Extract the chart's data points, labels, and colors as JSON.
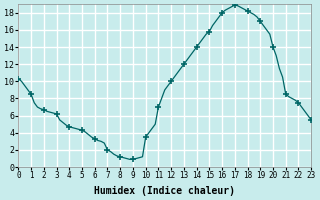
{
  "xlabel": "Humidex (Indice chaleur)",
  "ylabel": "",
  "xlim": [
    0,
    23
  ],
  "ylim": [
    0,
    19
  ],
  "yticks": [
    0,
    2,
    4,
    6,
    8,
    10,
    12,
    14,
    16,
    18
  ],
  "xticks": [
    0,
    1,
    2,
    3,
    4,
    5,
    6,
    7,
    8,
    9,
    10,
    11,
    12,
    13,
    14,
    15,
    16,
    17,
    18,
    19,
    20,
    21,
    22,
    23
  ],
  "background_color": "#c8ecec",
  "grid_color": "#ffffff",
  "line_color": "#006666",
  "marker_color": "#006666",
  "x": [
    0,
    0.25,
    0.5,
    0.75,
    1.0,
    1.25,
    1.5,
    1.75,
    2.0,
    2.25,
    2.5,
    2.75,
    3.0,
    3.25,
    3.5,
    3.75,
    4.0,
    4.25,
    4.5,
    4.75,
    5.0,
    5.25,
    5.5,
    5.75,
    6.0,
    6.25,
    6.5,
    6.75,
    7.0,
    7.25,
    7.5,
    7.75,
    8.0,
    8.25,
    8.5,
    8.75,
    9.0,
    9.25,
    9.5,
    9.75,
    10.0,
    10.25,
    10.5,
    10.75,
    11.0,
    11.25,
    11.5,
    11.75,
    12.0,
    12.25,
    12.5,
    12.75,
    13.0,
    13.25,
    13.5,
    13.75,
    14.0,
    14.25,
    14.5,
    14.75,
    15.0,
    15.25,
    15.5,
    15.75,
    16.0,
    16.25,
    16.5,
    16.75,
    17.0,
    17.25,
    17.5,
    17.75,
    18.0,
    18.25,
    18.5,
    18.75,
    19.0,
    19.25,
    19.5,
    19.75,
    20.0,
    20.25,
    20.5,
    20.75,
    21.0,
    21.25,
    21.5,
    21.75,
    22.0,
    22.25,
    22.5,
    22.75,
    23.0
  ],
  "y": [
    10.3,
    10.0,
    9.5,
    9.0,
    8.5,
    7.5,
    7.0,
    6.8,
    6.7,
    6.5,
    6.4,
    6.3,
    6.2,
    5.5,
    5.2,
    4.9,
    4.7,
    4.6,
    4.5,
    4.4,
    4.3,
    4.1,
    3.8,
    3.5,
    3.3,
    3.1,
    3.0,
    2.8,
    2.0,
    1.8,
    1.5,
    1.3,
    1.2,
    1.1,
    1.0,
    0.9,
    0.9,
    1.0,
    1.1,
    1.2,
    3.5,
    4.0,
    4.5,
    5.0,
    7.0,
    8.0,
    9.0,
    9.5,
    10.0,
    10.5,
    11.0,
    11.5,
    12.0,
    12.5,
    13.0,
    13.5,
    14.0,
    14.5,
    15.0,
    15.5,
    15.8,
    16.5,
    17.0,
    17.5,
    18.0,
    18.3,
    18.5,
    18.7,
    18.9,
    18.8,
    18.6,
    18.4,
    18.2,
    18.0,
    17.8,
    17.5,
    17.0,
    16.5,
    16.0,
    15.5,
    14.0,
    13.0,
    11.5,
    10.5,
    8.5,
    8.2,
    8.0,
    7.8,
    7.5,
    7.0,
    6.5,
    6.0,
    5.5
  ],
  "marker_x": [
    0,
    1,
    2,
    3,
    4,
    5,
    6,
    7,
    8,
    9,
    10,
    11,
    12,
    13,
    14,
    15,
    16,
    17,
    18,
    19,
    20,
    21,
    22,
    23
  ],
  "marker_y": [
    10.3,
    8.5,
    6.7,
    6.2,
    4.7,
    4.3,
    3.3,
    2.0,
    1.2,
    0.9,
    3.5,
    7.0,
    10.0,
    12.0,
    14.0,
    15.8,
    18.0,
    18.9,
    18.2,
    17.0,
    14.0,
    8.5,
    7.5,
    5.5
  ]
}
